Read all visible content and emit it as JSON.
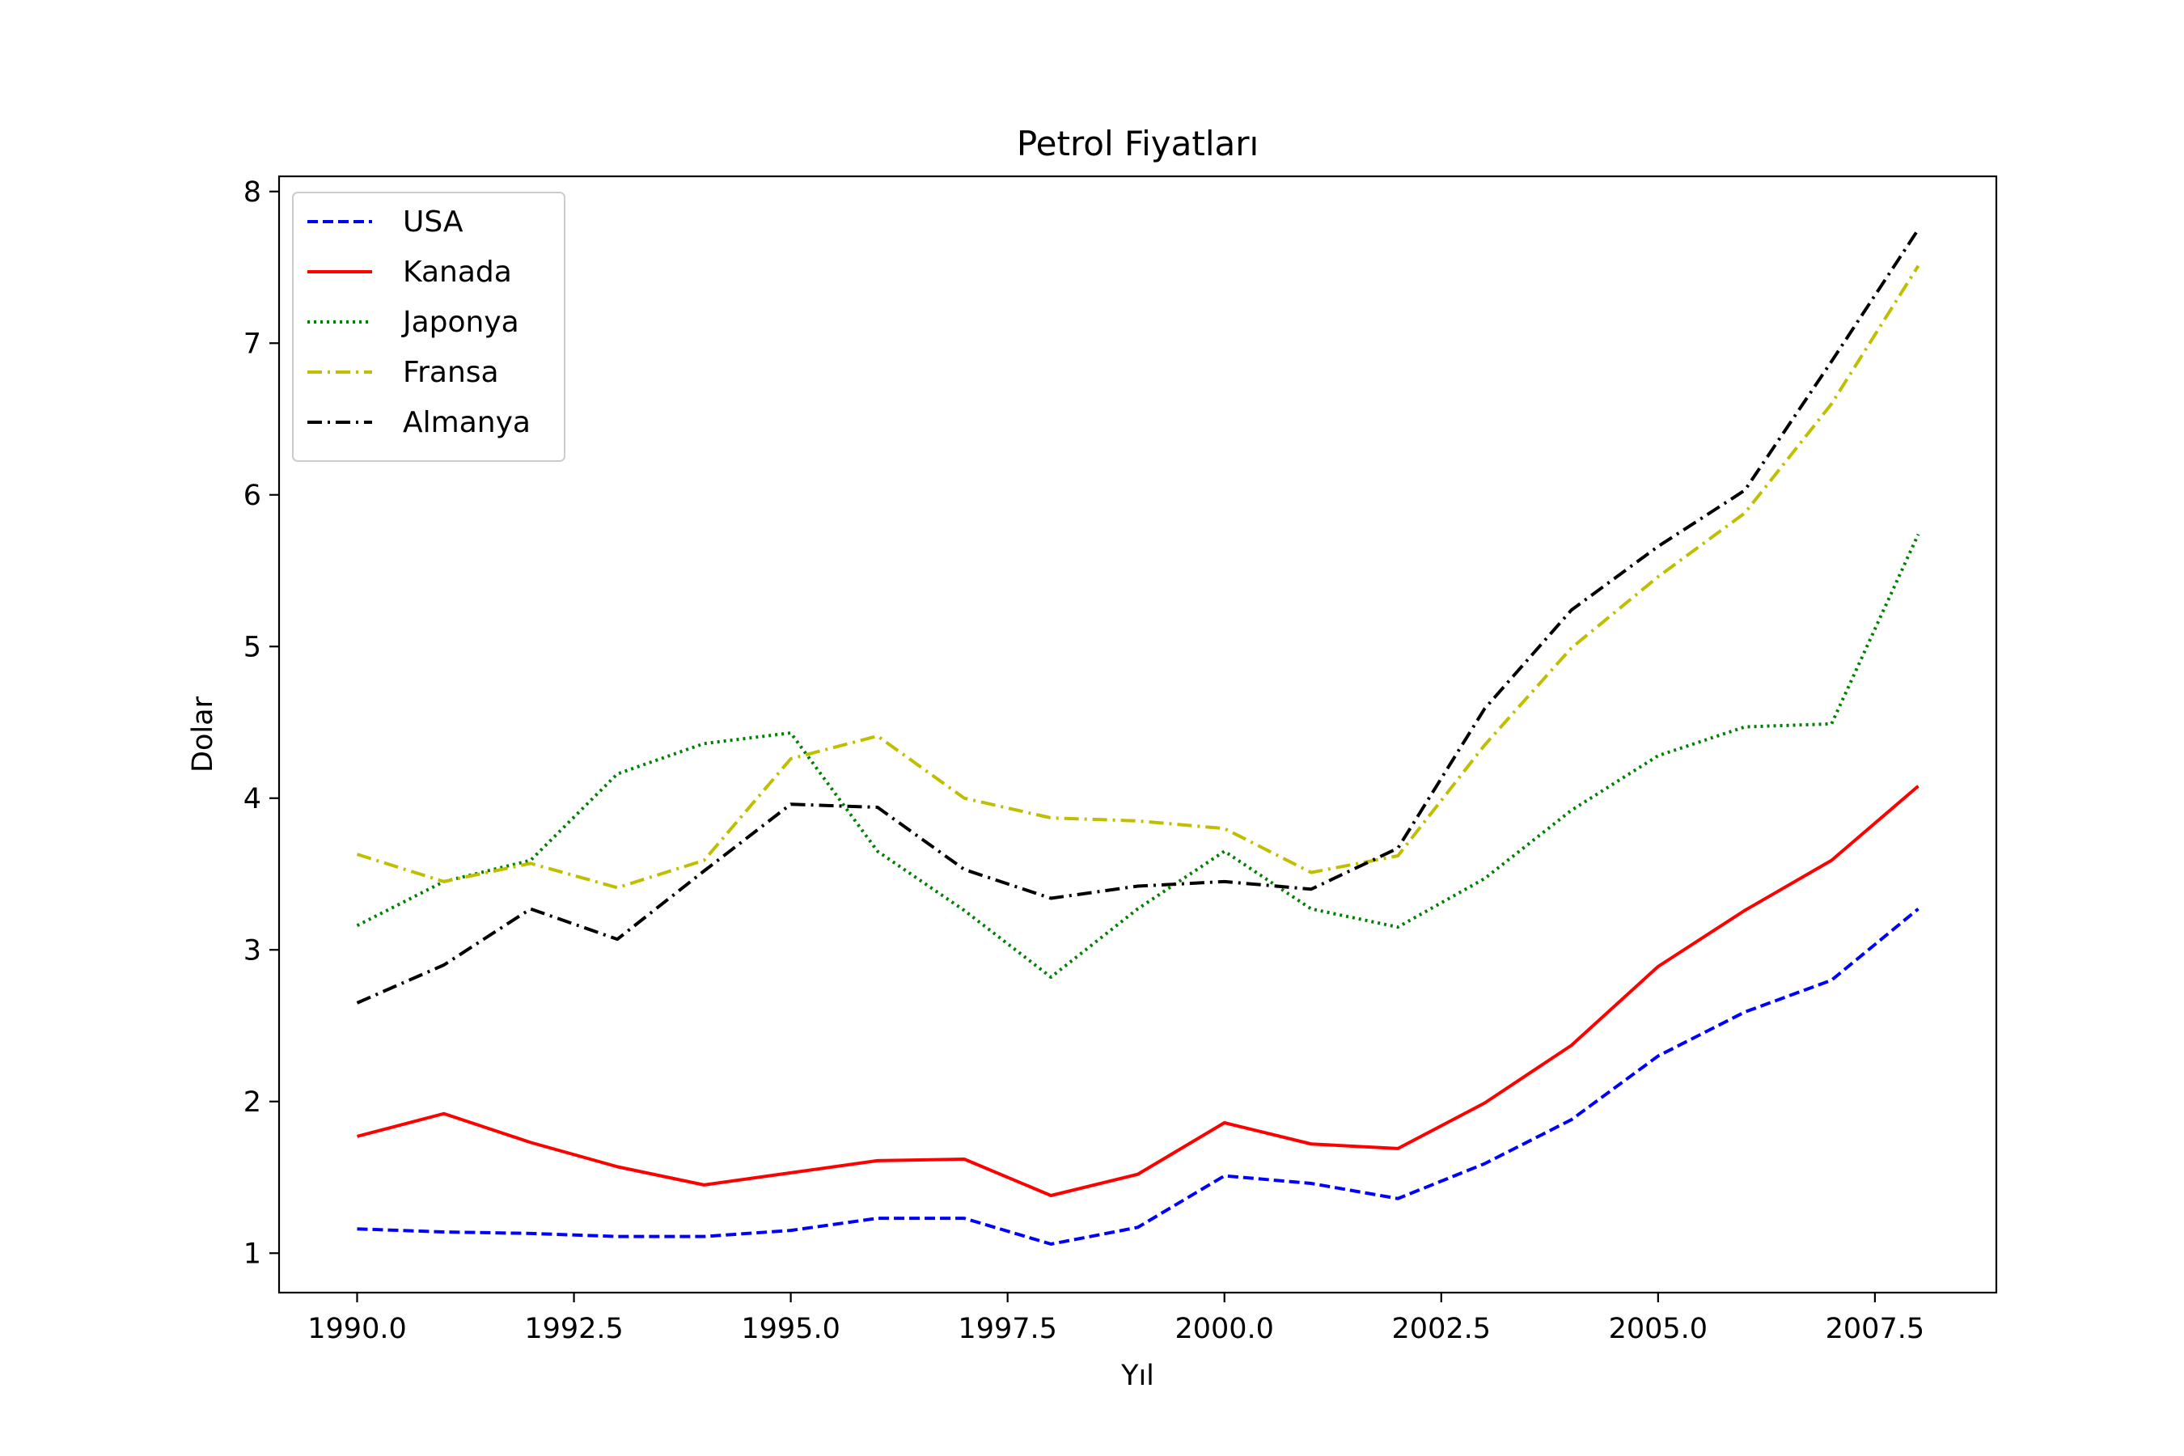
{
  "chart_data": {
    "type": "line",
    "title": "Petrol Fiyatları",
    "xlabel": "Yıl",
    "ylabel": "Dolar",
    "xlim": [
      1989.1,
      2008.9
    ],
    "ylim": [
      0.74,
      8.1
    ],
    "x_ticks": [
      1990.0,
      1992.5,
      1995.0,
      1997.5,
      2000.0,
      2002.5,
      2005.0,
      2007.5
    ],
    "x_tick_labels": [
      "1990.0",
      "1992.5",
      "1995.0",
      "1997.5",
      "2000.0",
      "2002.5",
      "2005.0",
      "2007.5"
    ],
    "y_ticks": [
      1,
      2,
      3,
      4,
      5,
      6,
      7,
      8
    ],
    "y_tick_labels": [
      "1",
      "2",
      "3",
      "4",
      "5",
      "6",
      "7",
      "8"
    ],
    "grid": false,
    "legend_position": "top-left",
    "x": [
      1990,
      1991,
      1992,
      1993,
      1994,
      1995,
      1996,
      1997,
      1998,
      1999,
      2000,
      2001,
      2002,
      2003,
      2004,
      2005,
      2006,
      2007,
      2008
    ],
    "series": [
      {
        "name": "USA",
        "color": "#0000ff",
        "style": "dashed",
        "values": [
          1.16,
          1.14,
          1.13,
          1.11,
          1.11,
          1.15,
          1.23,
          1.23,
          1.06,
          1.17,
          1.51,
          1.46,
          1.36,
          1.59,
          1.88,
          2.3,
          2.59,
          2.8,
          3.27
        ]
      },
      {
        "name": "Kanada",
        "color": "#ff0000",
        "style": "solid",
        "values": [
          1.77,
          1.92,
          1.73,
          1.57,
          1.45,
          1.53,
          1.61,
          1.62,
          1.38,
          1.52,
          1.86,
          1.72,
          1.69,
          1.99,
          2.37,
          2.89,
          3.26,
          3.59,
          4.08
        ]
      },
      {
        "name": "Japonya",
        "color": "#008000",
        "style": "dotted",
        "values": [
          3.16,
          3.45,
          3.59,
          4.16,
          4.36,
          4.43,
          3.65,
          3.26,
          2.82,
          3.27,
          3.65,
          3.27,
          3.15,
          3.47,
          3.92,
          4.28,
          4.47,
          4.49,
          5.74
        ]
      },
      {
        "name": "Fransa",
        "color": "#bfbf00",
        "style": "dashdot",
        "values": [
          3.63,
          3.45,
          3.57,
          3.41,
          3.59,
          4.26,
          4.41,
          4.0,
          3.87,
          3.85,
          3.8,
          3.51,
          3.62,
          4.35,
          4.99,
          5.46,
          5.88,
          6.6,
          7.51
        ]
      },
      {
        "name": "Almanya",
        "color": "#000000",
        "style": "dashdot",
        "values": [
          2.65,
          2.9,
          3.27,
          3.07,
          3.52,
          3.96,
          3.94,
          3.53,
          3.34,
          3.42,
          3.45,
          3.4,
          3.67,
          4.59,
          5.24,
          5.66,
          6.03,
          6.88,
          7.75
        ]
      }
    ]
  }
}
